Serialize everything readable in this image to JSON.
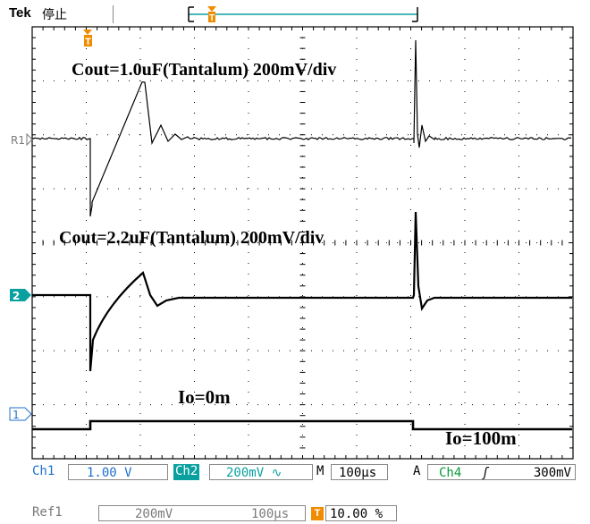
{
  "header": {
    "brand": "Tek",
    "acq_state": "停止",
    "trigger_marker": "T"
  },
  "screen": {
    "markers": {
      "trigger": "T",
      "ref1": "R1",
      "ch2": "2",
      "ch1": "1"
    },
    "annotations": {
      "cout1": "Cout=1.0uF(Tantalum) 200mV/div",
      "cout2": "Cout=2.2uF(Tantalum) 200mV/div",
      "io0": "Io=0m",
      "io100": "Io=100m"
    }
  },
  "status_bar": {
    "ch1_label": "Ch1",
    "ch1_scale": "1.00 V",
    "ch2_label": "Ch2",
    "ch2_scale": "200mV",
    "ch2_bw_symbol": "∿",
    "time_prefix": "M",
    "time_scale": "100µs",
    "trig_prefix": "A",
    "trig_source": "Ch4",
    "trig_slope": "ʃ",
    "trig_level": "300mV"
  },
  "ref_bar": {
    "ref_label": "Ref1",
    "ref_scale": "200mV",
    "ref_time": "100µs",
    "trig_icon": "T",
    "trig_pos": "10.00 %"
  },
  "colors": {
    "ch2": "#0aa0a0",
    "ch1": "#1e6fd0",
    "trigger": "#f08c00",
    "trace": "#000000",
    "graticule": "#000000"
  }
}
